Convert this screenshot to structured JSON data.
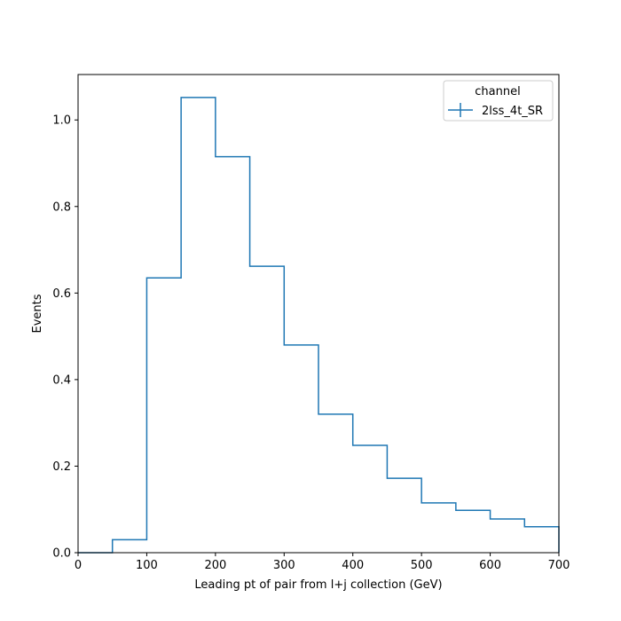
{
  "chart_data": {
    "type": "histogram",
    "xlabel": "Leading pt of pair from l+j collection (GeV)",
    "ylabel": "Events",
    "xlim": [
      0,
      700
    ],
    "ylim": [
      0,
      1.105
    ],
    "bin_edges": [
      0,
      50,
      100,
      150,
      200,
      250,
      300,
      350,
      400,
      450,
      500,
      550,
      600,
      650,
      700
    ],
    "x_ticks": [
      0,
      100,
      200,
      300,
      400,
      500,
      600,
      700
    ],
    "x_tick_labels": [
      "0",
      "100",
      "200",
      "300",
      "400",
      "500",
      "600",
      "700"
    ],
    "y_ticks": [
      0,
      0.2,
      0.4,
      0.6,
      0.8,
      1.0
    ],
    "y_tick_labels": [
      "0.0",
      "0.2",
      "0.4",
      "0.6",
      "0.8",
      "1.0"
    ],
    "grid": false,
    "legend": {
      "title": "channel",
      "placement": "top-right"
    },
    "series": [
      {
        "name": "2lss_4t_SR",
        "color": "#1f77b4",
        "values": [
          0.0,
          0.03,
          0.635,
          1.052,
          0.915,
          0.662,
          0.48,
          0.32,
          0.248,
          0.172,
          0.115,
          0.098,
          0.078,
          0.06
        ]
      }
    ]
  }
}
